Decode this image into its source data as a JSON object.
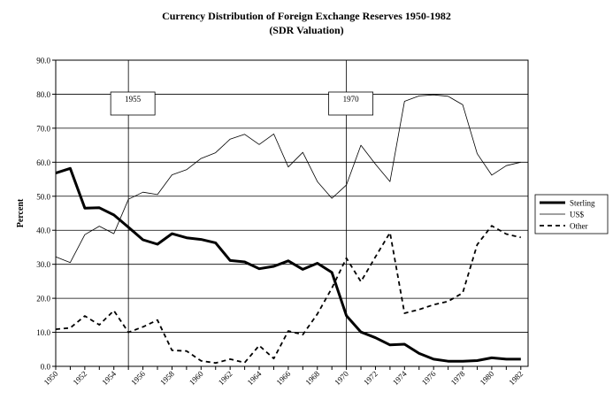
{
  "chart_data": {
    "type": "line",
    "title": "Currency Distribution of Foreign Exchange Reserves 1950-1982",
    "subtitle": "(SDR Valuation)",
    "xlabel": "",
    "ylabel": "Percent",
    "xlim": [
      1950,
      1982.5
    ],
    "ylim": [
      0,
      90
    ],
    "x_ticks": [
      "1950",
      "1952",
      "1954",
      "1956",
      "1958",
      "1960",
      "1962",
      "1964",
      "1966",
      "1968",
      "1970",
      "1972",
      "1974",
      "1976",
      "1978",
      "1980",
      "1982"
    ],
    "y_ticks": [
      "0.0",
      "10.0",
      "20.0",
      "30.0",
      "40.0",
      "50.0",
      "60.0",
      "70.0",
      "80.0",
      "90.0"
    ],
    "grid": "horizontal",
    "legend_position": "right",
    "annotations": [
      {
        "label": "1955",
        "x": 1955
      },
      {
        "label": "1970",
        "x": 1970
      }
    ],
    "x": [
      1950,
      1951,
      1952,
      1953,
      1954,
      1955,
      1956,
      1957,
      1958,
      1959,
      1960,
      1961,
      1962,
      1963,
      1964,
      1965,
      1966,
      1967,
      1968,
      1969,
      1970,
      1971,
      1972,
      1973,
      1974,
      1975,
      1976,
      1977,
      1978,
      1979,
      1980,
      1981,
      1982
    ],
    "series": [
      {
        "name": "Sterling",
        "style": "thick",
        "values": [
          56.8,
          58.2,
          46.5,
          46.6,
          44.5,
          40.9,
          37.2,
          35.9,
          39.0,
          37.8,
          37.3,
          36.3,
          31.1,
          30.7,
          28.7,
          29.4,
          31.0,
          28.5,
          30.3,
          27.6,
          14.9,
          10.1,
          8.4,
          6.3,
          6.5,
          3.8,
          2.1,
          1.5,
          1.5,
          1.7,
          2.5,
          2.1,
          2.1
        ]
      },
      {
        "name": "US$",
        "style": "thin",
        "values": [
          32.2,
          30.5,
          38.7,
          41.2,
          39.0,
          49.1,
          51.2,
          50.5,
          56.3,
          57.8,
          61.1,
          62.8,
          66.8,
          68.2,
          65.2,
          68.3,
          58.6,
          62.9,
          54.3,
          49.4,
          53.3,
          65.0,
          59.4,
          54.3,
          77.9,
          79.5,
          79.8,
          79.4,
          76.9,
          62.5,
          56.2,
          59.0,
          60.0
        ]
      },
      {
        "name": "Other",
        "style": "dashed",
        "values": [
          10.9,
          11.3,
          14.8,
          12.2,
          16.4,
          10.0,
          11.6,
          13.6,
          4.7,
          4.5,
          1.6,
          1.0,
          2.1,
          1.1,
          6.1,
          2.3,
          10.4,
          9.3,
          15.4,
          23.0,
          31.8,
          24.9,
          32.2,
          39.3,
          15.6,
          16.7,
          18.1,
          19.1,
          21.6,
          35.8,
          41.3,
          38.9,
          37.9
        ]
      }
    ]
  }
}
